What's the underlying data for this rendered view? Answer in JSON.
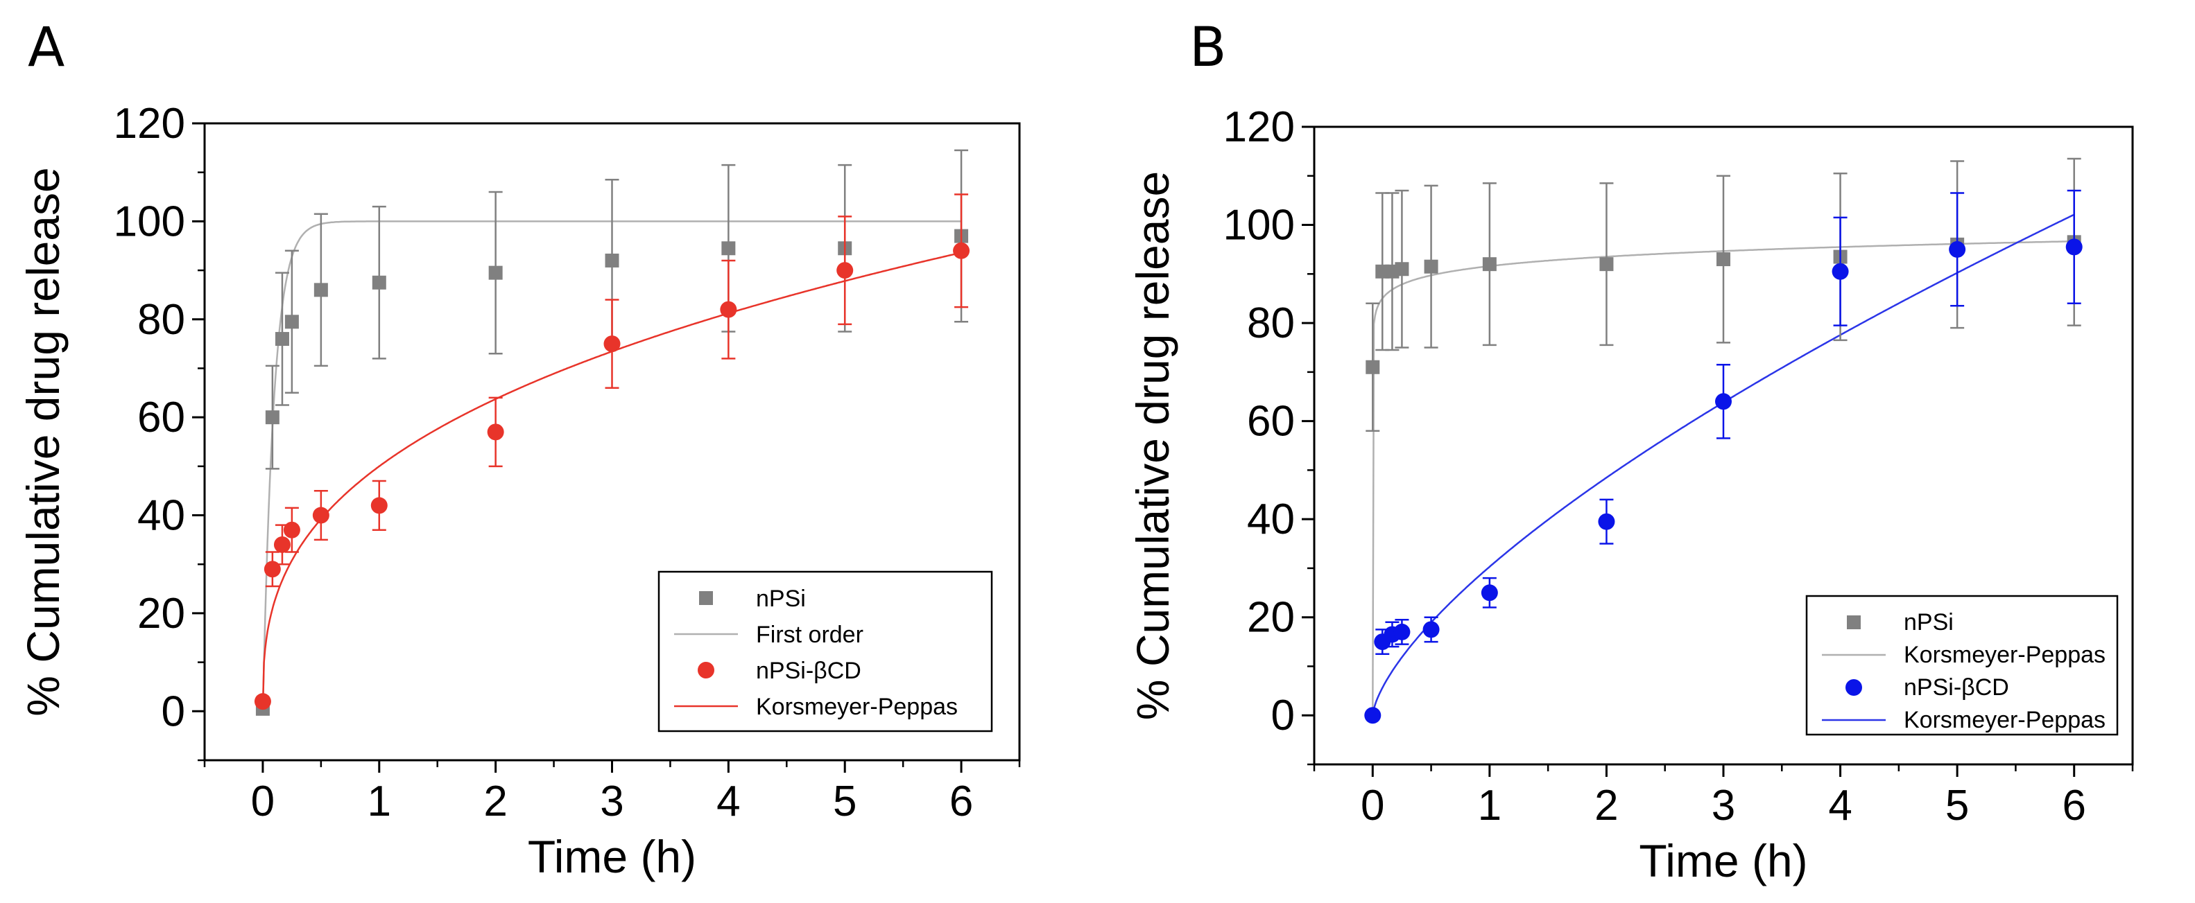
{
  "chart_data": [
    {
      "panel_label": "A",
      "type": "scatter",
      "xlabel": "Time (h)",
      "ylabel": "% Cumulative drug release",
      "xlim": [
        -0.5,
        6.5
      ],
      "ylim": [
        -10,
        120
      ],
      "xticks": [
        0,
        1,
        2,
        3,
        4,
        5,
        6
      ],
      "yticks": [
        0,
        20,
        40,
        60,
        80,
        100,
        120
      ],
      "grid": false,
      "legend_position": "bottom-right",
      "series": [
        {
          "name": "nPSi",
          "kind": "points",
          "marker": "square",
          "color": "#808080",
          "x": [
            0,
            0.083,
            0.167,
            0.25,
            0.5,
            1,
            2,
            3,
            4,
            5,
            6
          ],
          "y": [
            0.5,
            60,
            76,
            79.5,
            86,
            87.5,
            89.5,
            92,
            94.5,
            94.5,
            97
          ],
          "yerr": [
            0.5,
            10.5,
            13.5,
            14.5,
            15.5,
            15.5,
            16.5,
            16.5,
            17,
            17,
            17.5
          ]
        },
        {
          "name": "First order",
          "kind": "line",
          "color": "#b0b0b0",
          "model": "first_order",
          "params": {
            "qmax": 100,
            "k": 10.5
          }
        },
        {
          "name": "nPSi-βCD",
          "kind": "points",
          "marker": "circle",
          "color": "#e8342a",
          "x": [
            0,
            0.083,
            0.167,
            0.25,
            0.5,
            1,
            2,
            3,
            4,
            5,
            6
          ],
          "y": [
            2,
            29,
            34,
            37,
            40,
            42,
            57,
            75,
            82,
            90,
            94
          ],
          "yerr": [
            0,
            3.5,
            4,
            4.5,
            5,
            5,
            7,
            9,
            10,
            11,
            11.5
          ]
        },
        {
          "name": "Korsmeyer-Peppas",
          "kind": "line",
          "color": "#e8342a",
          "model": "korsmeyer_peppas",
          "params": {
            "k": 50,
            "n": 0.35
          }
        }
      ]
    },
    {
      "panel_label": "B",
      "type": "scatter",
      "xlabel": "Time (h)",
      "ylabel": "% Cumulative drug release",
      "xlim": [
        -0.5,
        6.5
      ],
      "ylim": [
        -10,
        120
      ],
      "xticks": [
        0,
        1,
        2,
        3,
        4,
        5,
        6
      ],
      "yticks": [
        0,
        20,
        40,
        60,
        80,
        100,
        120
      ],
      "grid": false,
      "legend_position": "bottom-right",
      "series": [
        {
          "name": "nPSi",
          "kind": "points",
          "marker": "square",
          "color": "#808080",
          "x": [
            0,
            0.083,
            0.167,
            0.25,
            0.5,
            1,
            2,
            3,
            4,
            5,
            6
          ],
          "y": [
            71,
            90.5,
            90.5,
            91,
            91.5,
            92,
            92,
            93,
            93.5,
            96,
            96.5
          ],
          "yerr": [
            13,
            16,
            16,
            16,
            16.5,
            16.5,
            16.5,
            17,
            17,
            17,
            17
          ]
        },
        {
          "name": "Korsmeyer-Peppas",
          "kind": "line",
          "color": "#b0b0b0",
          "model": "korsmeyer_peppas",
          "params": {
            "k": 91.6,
            "n": 0.03
          }
        },
        {
          "name": "nPSi-βCD",
          "kind": "points",
          "marker": "circle",
          "color": "#0a14e8",
          "x": [
            0,
            0.083,
            0.167,
            0.25,
            0.5,
            1,
            2,
            3,
            4,
            5,
            6
          ],
          "y": [
            0,
            15,
            16.5,
            17,
            17.5,
            25,
            39.5,
            64,
            90.5,
            95,
            95.5
          ],
          "yerr": [
            0,
            2.5,
            2.5,
            2.5,
            2.5,
            3,
            4.5,
            7.5,
            11,
            11.5,
            11.5
          ]
        },
        {
          "name": "Korsmeyer-Peppas",
          "kind": "line",
          "color": "#2b35e8",
          "model": "korsmeyer_peppas",
          "params": {
            "k": 30.3,
            "n": 0.678
          }
        }
      ]
    }
  ]
}
